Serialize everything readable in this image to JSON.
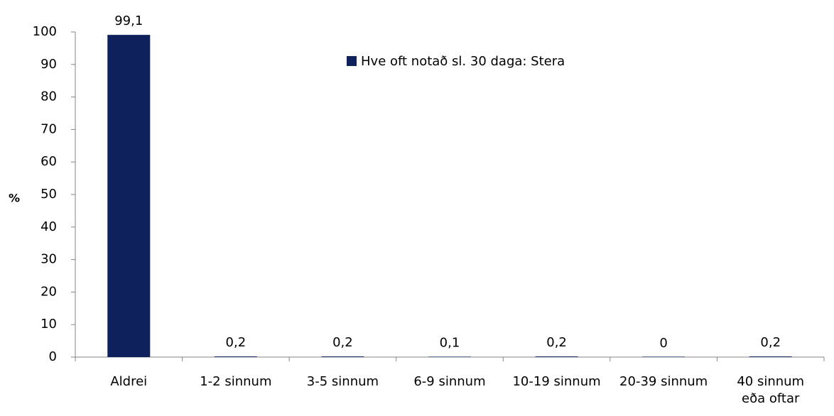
{
  "chart_data": {
    "type": "bar",
    "categories": [
      [
        "Aldrei"
      ],
      [
        "1-2 sinnum"
      ],
      [
        "3-5 sinnum"
      ],
      [
        "6-9 sinnum"
      ],
      [
        "10-19 sinnum"
      ],
      [
        "20-39 sinnum"
      ],
      [
        "40 sinnum",
        "eða oftar"
      ]
    ],
    "series": [
      {
        "name": "Hve oft notað sl. 30 daga: Stera",
        "color": "#0e215c",
        "values": [
          99.1,
          0.2,
          0.2,
          0.1,
          0.2,
          0,
          0.2
        ],
        "value_labels": [
          "99,1",
          "0,2",
          "0,2",
          "0,1",
          "0,2",
          "0",
          "0,2"
        ]
      }
    ],
    "ylabel": "%",
    "ylim": [
      0,
      100
    ],
    "yticks": [
      0,
      10,
      20,
      30,
      40,
      50,
      60,
      70,
      80,
      90,
      100
    ],
    "grid": false,
    "legend_position": "top-center"
  }
}
